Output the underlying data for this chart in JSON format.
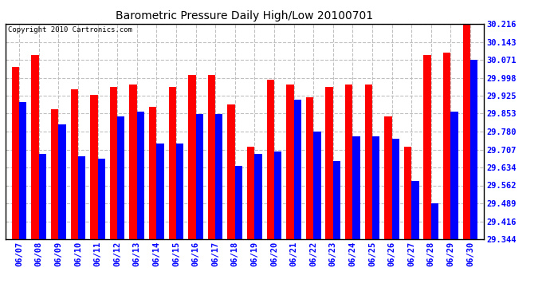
{
  "title": "Barometric Pressure Daily High/Low 20100701",
  "copyright": "Copyright 2010 Cartronics.com",
  "dates": [
    "06/07",
    "06/08",
    "06/09",
    "06/10",
    "06/11",
    "06/12",
    "06/13",
    "06/14",
    "06/15",
    "06/16",
    "06/17",
    "06/18",
    "06/19",
    "06/20",
    "06/21",
    "06/22",
    "06/23",
    "06/24",
    "06/25",
    "06/26",
    "06/27",
    "06/28",
    "06/29",
    "06/30"
  ],
  "highs": [
    30.04,
    30.09,
    29.87,
    29.95,
    29.93,
    29.96,
    29.97,
    29.88,
    29.96,
    30.01,
    30.01,
    29.89,
    29.72,
    29.99,
    29.97,
    29.92,
    29.96,
    29.97,
    29.97,
    29.84,
    29.72,
    30.09,
    30.1,
    30.216
  ],
  "lows": [
    29.9,
    29.69,
    29.81,
    29.68,
    29.67,
    29.84,
    29.86,
    29.73,
    29.73,
    29.85,
    29.85,
    29.64,
    29.69,
    29.7,
    29.91,
    29.78,
    29.66,
    29.76,
    29.76,
    29.75,
    29.58,
    29.49,
    29.86,
    30.071
  ],
  "bar_color_high": "#ff0000",
  "bar_color_low": "#0000ff",
  "bg_color": "#ffffff",
  "grid_color": "#c0c0c0",
  "ylim_min": 29.344,
  "ylim_max": 30.216,
  "yticks": [
    29.344,
    29.416,
    29.489,
    29.562,
    29.634,
    29.707,
    29.78,
    29.853,
    29.925,
    29.998,
    30.071,
    30.143,
    30.216
  ]
}
